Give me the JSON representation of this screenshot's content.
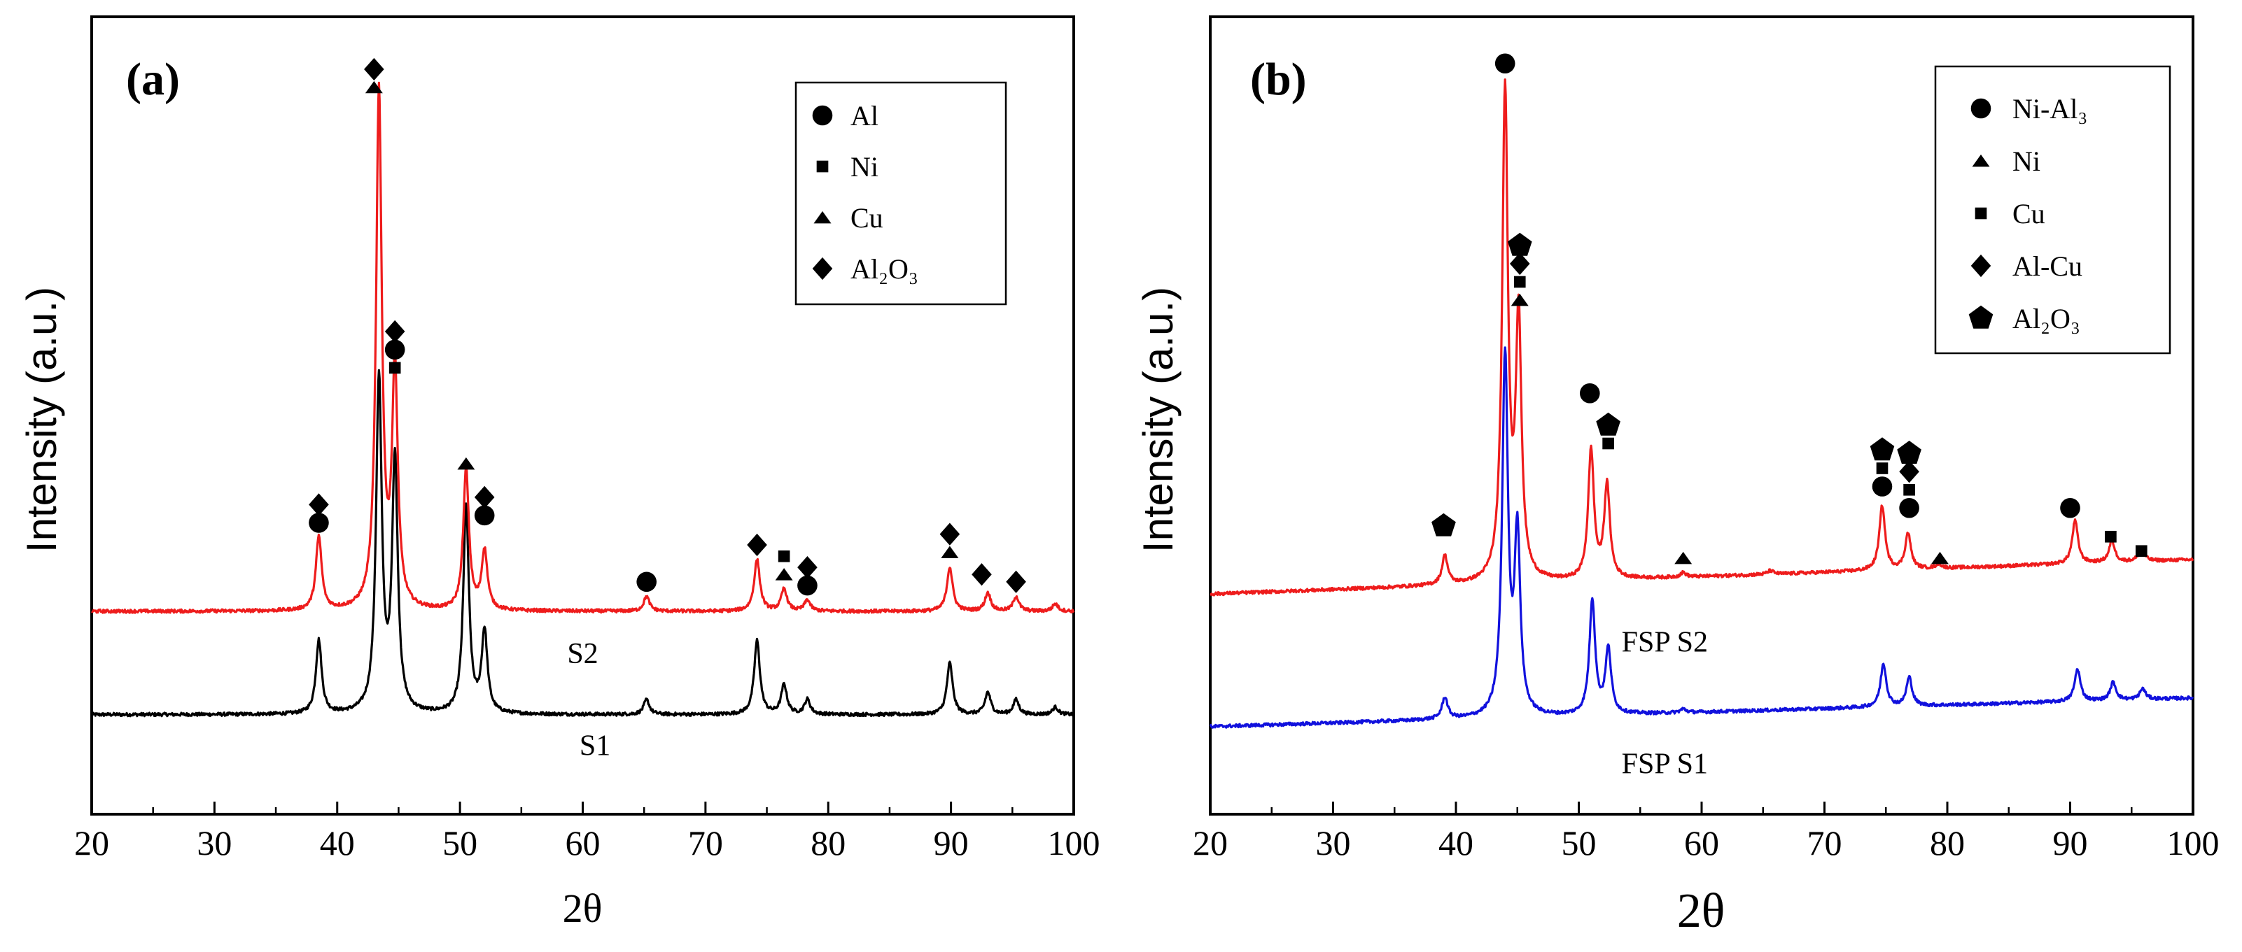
{
  "colors": {
    "s1": "#000000",
    "s2": "#ee1c1c",
    "fsp_s1": "#1111dd",
    "fsp_s2": "#ee1c1c"
  },
  "chart_data": [
    {
      "type": "line",
      "panel_label": "(a)",
      "xlabel": "2θ",
      "ylabel": "Intensity (a.u.)",
      "xlim": [
        20,
        100
      ],
      "ylim": [
        0,
        100
      ],
      "x_ticks": [
        "20",
        "30",
        "40",
        "50",
        "60",
        "70",
        "80",
        "90",
        "100"
      ],
      "legend": {
        "position": "top-right",
        "entries": [
          {
            "symbol": "circle",
            "label": "Al"
          },
          {
            "symbol": "square",
            "label": "Ni"
          },
          {
            "symbol": "triangle",
            "label": "Cu"
          },
          {
            "symbol": "diamond",
            "label": "Al₂O₃"
          }
        ]
      },
      "series": [
        {
          "name": "S1",
          "color_key": "s1",
          "baseline": 6,
          "baseline_slope": 0,
          "peaks": [
            {
              "x": 38.5,
              "h": 10
            },
            {
              "x": 43.4,
              "h": 45
            },
            {
              "x": 44.7,
              "h": 34
            },
            {
              "x": 50.5,
              "h": 28
            },
            {
              "x": 52.0,
              "h": 11
            },
            {
              "x": 65.2,
              "h": 2
            },
            {
              "x": 74.2,
              "h": 10
            },
            {
              "x": 76.4,
              "h": 4
            },
            {
              "x": 78.3,
              "h": 2
            },
            {
              "x": 89.9,
              "h": 7
            },
            {
              "x": 93.0,
              "h": 3
            },
            {
              "x": 95.3,
              "h": 2
            },
            {
              "x": 98.5,
              "h": 1
            }
          ]
        },
        {
          "name": "S2",
          "color_key": "s2",
          "baseline": 20,
          "baseline_slope": 0,
          "peaks": [
            {
              "x": 38.5,
              "h": 10
            },
            {
              "x": 43.4,
              "h": 70
            },
            {
              "x": 44.7,
              "h": 32
            },
            {
              "x": 50.5,
              "h": 19
            },
            {
              "x": 52.0,
              "h": 8
            },
            {
              "x": 65.2,
              "h": 2
            },
            {
              "x": 74.2,
              "h": 7
            },
            {
              "x": 76.4,
              "h": 3
            },
            {
              "x": 78.3,
              "h": 1.5
            },
            {
              "x": 89.9,
              "h": 6
            },
            {
              "x": 93.0,
              "h": 2.5
            },
            {
              "x": 95.3,
              "h": 2
            },
            {
              "x": 98.5,
              "h": 1
            }
          ]
        }
      ],
      "series_labels": [
        {
          "text": "S2",
          "x": 60,
          "y": 13
        },
        {
          "text": "S1",
          "x": 61,
          "y": 0.5
        }
      ],
      "annotations": [
        {
          "x": 38.5,
          "y": 32,
          "symbols": [
            "circle",
            "diamond"
          ]
        },
        {
          "x": 43.0,
          "y": 91,
          "symbols": [
            "triangle",
            "diamond"
          ]
        },
        {
          "x": 44.7,
          "y": 53,
          "symbols": [
            "square",
            "circle",
            "diamond"
          ]
        },
        {
          "x": 50.5,
          "y": 40,
          "symbols": [
            "triangle"
          ]
        },
        {
          "x": 52.0,
          "y": 33,
          "symbols": [
            "circle",
            "diamond"
          ]
        },
        {
          "x": 65.2,
          "y": 24,
          "symbols": [
            "circle"
          ]
        },
        {
          "x": 74.2,
          "y": 29,
          "symbols": [
            "diamond"
          ]
        },
        {
          "x": 76.4,
          "y": 25,
          "symbols": [
            "triangle",
            "square"
          ]
        },
        {
          "x": 78.3,
          "y": 23.5,
          "symbols": [
            "circle",
            "diamond"
          ]
        },
        {
          "x": 89.9,
          "y": 28,
          "symbols": [
            "triangle",
            "diamond"
          ]
        },
        {
          "x": 92.5,
          "y": 25,
          "symbols": [
            "diamond"
          ]
        },
        {
          "x": 95.3,
          "y": 24,
          "symbols": [
            "diamond"
          ]
        }
      ]
    },
    {
      "type": "line",
      "panel_label": "(b)",
      "xlabel": "2θ",
      "ylabel": "Intensity (a.u.)",
      "xlim": [
        20,
        100
      ],
      "ylim": [
        0,
        100
      ],
      "x_ticks": [
        "20",
        "30",
        "40",
        "50",
        "60",
        "70",
        "80",
        "90",
        "100"
      ],
      "legend": {
        "position": "top-right",
        "entries": [
          {
            "symbol": "circle",
            "label": "Ni-Al₃"
          },
          {
            "symbol": "triangle",
            "label": "Ni"
          },
          {
            "symbol": "square",
            "label": "Cu"
          },
          {
            "symbol": "diamond",
            "label": "Al-Cu"
          },
          {
            "symbol": "pentagon",
            "label": "Al₂O₃"
          }
        ]
      },
      "series": [
        {
          "name": "FSP S1",
          "color_key": "fsp_s1",
          "baseline": 4.5,
          "baseline_slope": 0.05,
          "peaks": [
            {
              "x": 39.1,
              "h": 3
            },
            {
              "x": 44.0,
              "h": 50
            },
            {
              "x": 45.0,
              "h": 25
            },
            {
              "x": 51.1,
              "h": 16
            },
            {
              "x": 52.4,
              "h": 9
            },
            {
              "x": 58.5,
              "h": 0.5
            },
            {
              "x": 74.8,
              "h": 6
            },
            {
              "x": 76.9,
              "h": 4
            },
            {
              "x": 90.6,
              "h": 4.5
            },
            {
              "x": 93.5,
              "h": 2.5
            },
            {
              "x": 95.9,
              "h": 1.5
            }
          ]
        },
        {
          "name": "FSP S2",
          "color_key": "fsp_s2",
          "baseline": 23,
          "baseline_slope": 0.06,
          "peaks": [
            {
              "x": 39.1,
              "h": 4
            },
            {
              "x": 44.0,
              "h": 68
            },
            {
              "x": 45.1,
              "h": 36
            },
            {
              "x": 51.0,
              "h": 18
            },
            {
              "x": 52.3,
              "h": 13
            },
            {
              "x": 58.5,
              "h": 0.6
            },
            {
              "x": 65.6,
              "h": 0.5
            },
            {
              "x": 74.7,
              "h": 9
            },
            {
              "x": 76.8,
              "h": 5
            },
            {
              "x": 79.3,
              "h": 0.6
            },
            {
              "x": 90.4,
              "h": 6
            },
            {
              "x": 93.4,
              "h": 3
            },
            {
              "x": 95.8,
              "h": 1.8
            }
          ]
        }
      ],
      "series_labels": [
        {
          "text": "FSP S2",
          "x": 57,
          "y": 15
        },
        {
          "text": "FSP S1",
          "x": 57,
          "y": -2
        }
      ],
      "annotations": [
        {
          "x": 39.0,
          "y": 32.5,
          "symbols": [
            "pentagon"
          ]
        },
        {
          "x": 44.0,
          "y": 97,
          "symbols": [
            "circle"
          ]
        },
        {
          "x": 45.2,
          "y": 64,
          "symbols": [
            "triangle",
            "square",
            "diamond",
            "pentagon"
          ]
        },
        {
          "x": 50.9,
          "y": 51,
          "symbols": [
            "circle"
          ]
        },
        {
          "x": 52.4,
          "y": 44,
          "symbols": [
            "square",
            "pentagon"
          ]
        },
        {
          "x": 58.5,
          "y": 28,
          "symbols": [
            "triangle"
          ]
        },
        {
          "x": 74.7,
          "y": 38,
          "symbols": [
            "circle",
            "square",
            "pentagon"
          ]
        },
        {
          "x": 76.9,
          "y": 35,
          "symbols": [
            "circle",
            "square",
            "diamond",
            "pentagon"
          ]
        },
        {
          "x": 79.4,
          "y": 28,
          "symbols": [
            "triangle"
          ]
        },
        {
          "x": 90.0,
          "y": 35,
          "symbols": [
            "circle"
          ]
        },
        {
          "x": 93.3,
          "y": 31,
          "symbols": [
            "square"
          ]
        },
        {
          "x": 95.8,
          "y": 29,
          "symbols": [
            "square"
          ]
        }
      ]
    }
  ]
}
